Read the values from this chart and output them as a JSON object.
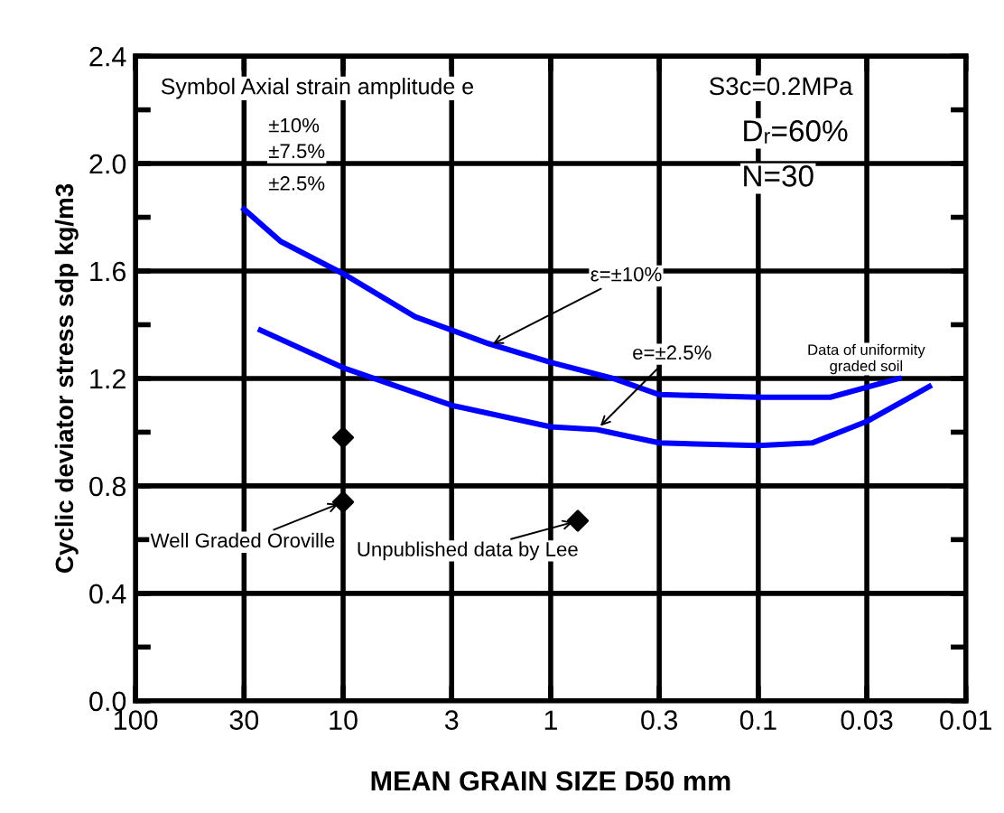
{
  "chart_data": {
    "type": "line",
    "xlabel": "MEAN GRAIN SIZE D50 mm",
    "ylabel": "Cyclic deviator stress sdp kg/m3",
    "log": "x",
    "xlim": [
      100,
      0.01
    ],
    "xticks": [
      100,
      30,
      10,
      3,
      1,
      0.3,
      0.1,
      0.03,
      0.01
    ],
    "ylim": [
      0,
      2.4
    ],
    "yticks": [
      {
        "value": 0,
        "label": "0.0"
      },
      {
        "value": 0.2,
        "label": null
      },
      0.4,
      {
        "value": 0.6,
        "label": null
      },
      0.8,
      {
        "value": 1.0,
        "label": null
      },
      1.2,
      {
        "value": 1.4,
        "label": null
      },
      1.6,
      {
        "value": 1.8,
        "label": null
      },
      {
        "value": 2.0,
        "label": "2.0"
      },
      {
        "value": 2.2,
        "label": null
      },
      2.4
    ],
    "grid": true,
    "series": [
      {
        "color": "#0000ff",
        "x": [
          30,
          20,
          10,
          4.5,
          2.0,
          1,
          0.5,
          0.3,
          0.1,
          0.045,
          0.021
        ],
        "values": [
          1.83,
          1.71,
          1.59,
          1.43,
          1.33,
          1.26,
          1.2,
          1.14,
          1.13,
          1.13,
          1.2
        ]
      },
      {
        "color": "#0000ff",
        "x": [
          25,
          10,
          3,
          1,
          0.6,
          0.3,
          0.1,
          0.055,
          0.03,
          0.015
        ],
        "values": [
          1.38,
          1.24,
          1.1,
          1.02,
          1.01,
          0.96,
          0.95,
          0.96,
          1.04,
          1.17
        ]
      },
      {
        "type": "scatter",
        "color": "#000000",
        "marker": "diamond",
        "x": [
          10,
          10,
          0.74
        ],
        "values": [
          0.98,
          0.74,
          0.67
        ]
      }
    ],
    "annotations": [
      "Symbol Axial strain amplitude e",
      "±10%",
      "±7.5%",
      "±2.5%",
      "S3c=0.2MPa",
      "Dᵣ=60%",
      "N=30",
      "Data of uniformity\ngraded soil",
      {
        "text": "ε=±10%",
        "x": 2.0,
        "y": 1.32
      },
      {
        "text": "e=±2.5%",
        "x": 0.6,
        "y": 1.01
      },
      {
        "text": "Well Graded Oroville",
        "x": 10,
        "y": 0.74
      },
      {
        "text": "Unpublished data by Lee",
        "x": 0.74,
        "y": 0.67
      }
    ]
  }
}
